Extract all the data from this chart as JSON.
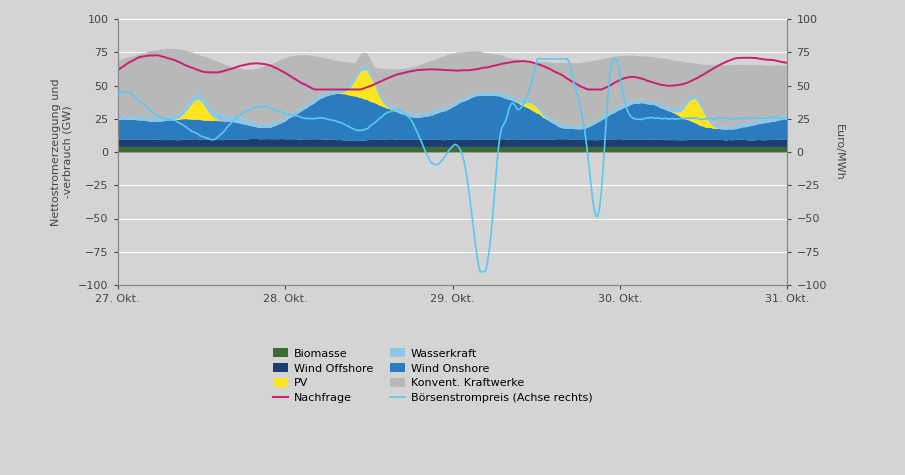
{
  "background_color": "#d4d4d4",
  "plot_bg_color": "#d4d4d4",
  "ylim": [
    -100,
    100
  ],
  "ylabel_left": "Nettostromerzeugung und\n-verbrauch (GW)",
  "ylabel_right": "Euro/MWh",
  "xtick_labels": [
    "27. Okt.",
    "28. Okt.",
    "29. Okt.",
    "30. Okt.",
    "31. Okt."
  ],
  "xtick_pos": [
    0,
    1,
    2,
    3,
    4
  ],
  "colors": {
    "biomasse": "#3d6b35",
    "wasserkraft": "#8ec6e6",
    "wind_offshore": "#1c3d6e",
    "wind_onshore": "#2b7bbf",
    "pv": "#ffe520",
    "konvent": "#b8b8b8",
    "nachfrage": "#c8206e",
    "boerse": "#5bc8f0"
  },
  "n_points": 400
}
